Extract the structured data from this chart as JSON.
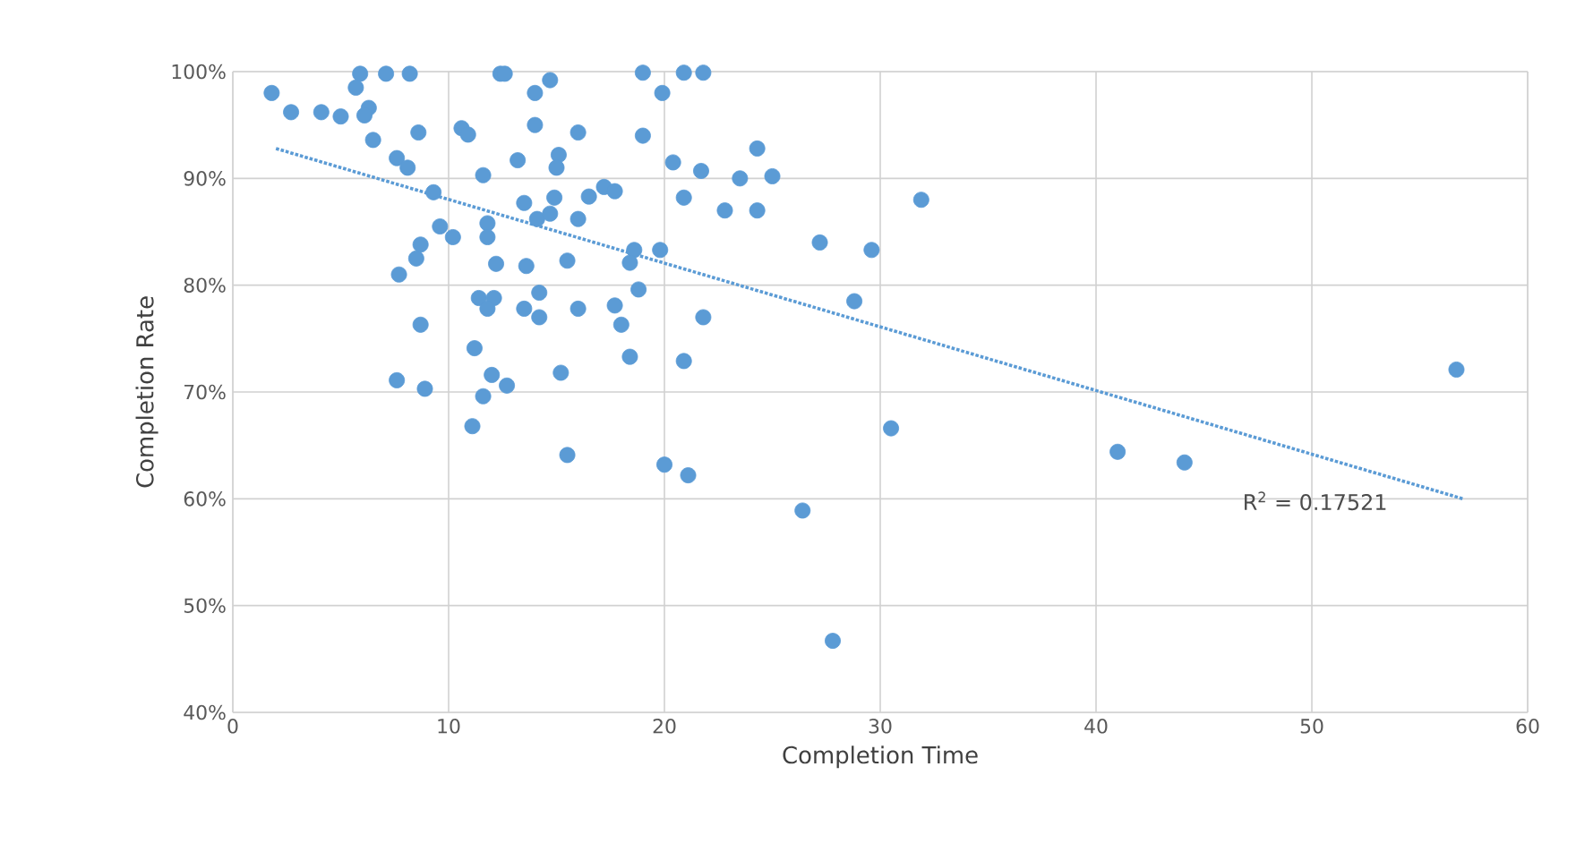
{
  "chart_data": {
    "type": "scatter",
    "xlabel": "Completion Time",
    "ylabel": "Completion Rate",
    "xlim": [
      0,
      60
    ],
    "xticks": [
      0,
      10,
      20,
      30,
      40,
      50,
      60
    ],
    "ylim": [
      40,
      100
    ],
    "yticks": [
      {
        "value": 40,
        "label": "40%"
      },
      {
        "value": 50,
        "label": "50%"
      },
      {
        "value": 60,
        "label": "60%"
      },
      {
        "value": 70,
        "label": "70%"
      },
      {
        "value": 80,
        "label": "80%"
      },
      {
        "value": 90,
        "label": "90%"
      },
      {
        "value": 100,
        "label": "100%"
      }
    ],
    "grid": true,
    "marker": "circle",
    "series": [
      {
        "type": "scatter",
        "color": "#5b9bd5",
        "x": [
          1.8,
          2.7,
          4.1,
          5.0,
          5.9,
          5.7,
          6.3,
          6.1,
          7.1,
          8.2,
          8.6,
          6.5,
          7.6,
          8.1,
          9.3,
          10.6,
          10.9,
          9.6,
          10.2,
          11.8,
          8.7,
          8.5,
          7.7,
          12.2,
          11.4,
          12.1,
          8.7,
          11.2,
          7.6,
          8.9,
          11.6,
          12.0,
          11.1,
          12.4,
          12.6,
          14.7,
          14.0,
          14.0,
          16.0,
          13.2,
          15.1,
          15.0,
          11.6,
          13.5,
          14.9,
          16.5,
          17.2,
          17.7,
          14.1,
          14.7,
          16.0,
          11.8,
          13.6,
          15.5,
          18.6,
          18.4,
          19.8,
          18.8,
          11.8,
          13.5,
          14.2,
          14.2,
          16.0,
          17.7,
          18.0,
          21.8,
          18.4,
          20.9,
          12.7,
          15.2,
          15.5,
          20.0,
          21.1,
          19.0,
          20.9,
          21.8,
          19.9,
          19.0,
          20.4,
          21.7,
          20.9,
          22.8,
          23.5,
          24.3,
          25.0,
          24.3,
          31.9,
          27.2,
          29.6,
          28.8,
          30.5,
          26.4,
          27.8,
          41.0,
          44.1,
          56.7
        ],
        "values": [
          98.0,
          96.2,
          96.2,
          95.8,
          99.8,
          98.5,
          96.6,
          95.9,
          99.8,
          99.8,
          94.3,
          93.6,
          91.9,
          91.0,
          88.7,
          94.7,
          94.1,
          85.5,
          84.5,
          85.8,
          83.8,
          82.5,
          81.0,
          82.0,
          78.8,
          78.8,
          76.3,
          74.1,
          71.1,
          70.3,
          69.6,
          71.6,
          66.8,
          99.8,
          99.8,
          99.2,
          98.0,
          95.0,
          94.3,
          91.7,
          92.2,
          91.0,
          90.3,
          87.7,
          88.2,
          88.3,
          89.2,
          88.8,
          86.2,
          86.7,
          86.2,
          84.5,
          81.8,
          82.3,
          83.3,
          82.1,
          83.3,
          79.6,
          77.8,
          77.8,
          79.3,
          77.0,
          77.8,
          78.1,
          76.3,
          77.0,
          73.3,
          72.9,
          70.6,
          71.8,
          64.1,
          63.2,
          62.2,
          99.9,
          99.9,
          99.9,
          98.0,
          94.0,
          91.5,
          90.7,
          88.2,
          87.0,
          90.0,
          92.8,
          90.2,
          87.0,
          88.0,
          84.0,
          83.3,
          78.5,
          66.6,
          58.9,
          46.7,
          64.4,
          63.4,
          72.1
        ]
      },
      {
        "type": "line",
        "color": "#5b9bd5",
        "line_style": "dotted",
        "marker": "none",
        "x": [
          2,
          57
        ],
        "values": [
          92.8,
          60.0
        ]
      }
    ],
    "annotations": [
      "R$^{2}$ = 0.17521"
    ]
  }
}
